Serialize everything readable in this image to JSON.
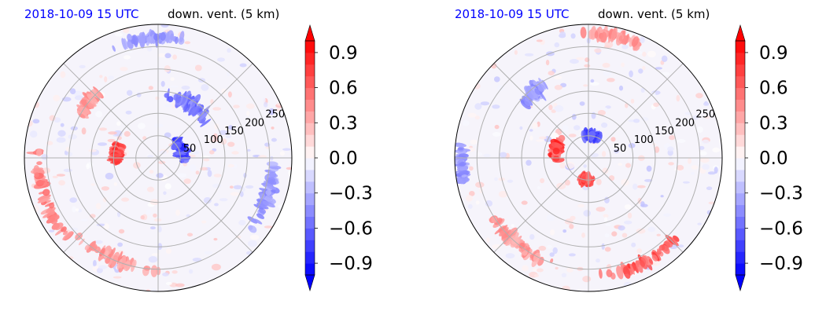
{
  "chart_data": [
    {
      "type": "heatmap",
      "projection": "polar",
      "title_date": "2018-10-09 15 UTC",
      "title_variable": "down. vent. (5 km)",
      "radial_ticks": [
        50,
        100,
        150,
        200,
        250
      ],
      "r_max": 300,
      "grid": true,
      "colorbar": {
        "colormap": "bwr",
        "vmin": -1.0,
        "vmax": 1.0,
        "extend": "both",
        "ticks": [
          "0.9",
          "0.6",
          "0.3",
          "0.0",
          "−0.3",
          "−0.6",
          "−0.9"
        ],
        "tick_values": [
          0.9,
          0.6,
          0.3,
          0.0,
          -0.3,
          -0.6,
          -0.9
        ],
        "levels": 20
      },
      "features": [
        {
          "sign": 1,
          "angle_deg": 175,
          "r": 95,
          "width_deg": 40,
          "dr": 25,
          "value": 0.9
        },
        {
          "sign": 1,
          "angle_deg": 200,
          "r": 270,
          "width_deg": 70,
          "dr": 25,
          "value": 0.6
        },
        {
          "sign": 1,
          "angle_deg": 245,
          "r": 250,
          "width_deg": 60,
          "dr": 30,
          "value": 0.5
        },
        {
          "sign": 1,
          "angle_deg": 140,
          "r": 200,
          "width_deg": 30,
          "dr": 30,
          "value": 0.5
        },
        {
          "sign": -1,
          "angle_deg": 20,
          "r": 55,
          "width_deg": 80,
          "dr": 20,
          "value": 0.9
        },
        {
          "sign": -1,
          "angle_deg": 60,
          "r": 140,
          "width_deg": 60,
          "dr": 40,
          "value": 0.7
        },
        {
          "sign": -1,
          "angle_deg": 340,
          "r": 260,
          "width_deg": 50,
          "dr": 30,
          "value": 0.5
        },
        {
          "sign": -1,
          "angle_deg": 95,
          "r": 270,
          "width_deg": 40,
          "dr": 25,
          "value": 0.5
        }
      ]
    },
    {
      "type": "heatmap",
      "projection": "polar",
      "title_date": "2018-10-09 15 UTC",
      "title_variable": "down. vent. (5 km)",
      "radial_ticks": [
        50,
        100,
        150,
        200,
        250
      ],
      "r_max": 300,
      "grid": true,
      "colorbar": {
        "colormap": "bwr",
        "vmin": -1.0,
        "vmax": 1.0,
        "extend": "both",
        "ticks": [
          "0.9",
          "0.6",
          "0.3",
          "0.0",
          "−0.3",
          "−0.6",
          "−0.9"
        ],
        "tick_values": [
          0.9,
          0.6,
          0.3,
          0.0,
          -0.3,
          -0.6,
          -0.9
        ],
        "levels": 20
      },
      "features": [
        {
          "sign": 1,
          "angle_deg": 165,
          "r": 75,
          "width_deg": 50,
          "dr": 20,
          "value": 0.9
        },
        {
          "sign": 1,
          "angle_deg": 265,
          "r": 50,
          "width_deg": 50,
          "dr": 15,
          "value": 0.9
        },
        {
          "sign": 1,
          "angle_deg": 300,
          "r": 265,
          "width_deg": 60,
          "dr": 25,
          "value": 0.8
        },
        {
          "sign": 1,
          "angle_deg": 230,
          "r": 250,
          "width_deg": 50,
          "dr": 30,
          "value": 0.5
        },
        {
          "sign": 1,
          "angle_deg": 80,
          "r": 280,
          "width_deg": 40,
          "dr": 20,
          "value": 0.5
        },
        {
          "sign": -1,
          "angle_deg": 80,
          "r": 50,
          "width_deg": 70,
          "dr": 15,
          "value": 0.9
        },
        {
          "sign": -1,
          "angle_deg": 130,
          "r": 190,
          "width_deg": 25,
          "dr": 40,
          "value": 0.5
        },
        {
          "sign": -1,
          "angle_deg": 185,
          "r": 285,
          "width_deg": 30,
          "dr": 20,
          "value": 0.5
        }
      ]
    }
  ]
}
